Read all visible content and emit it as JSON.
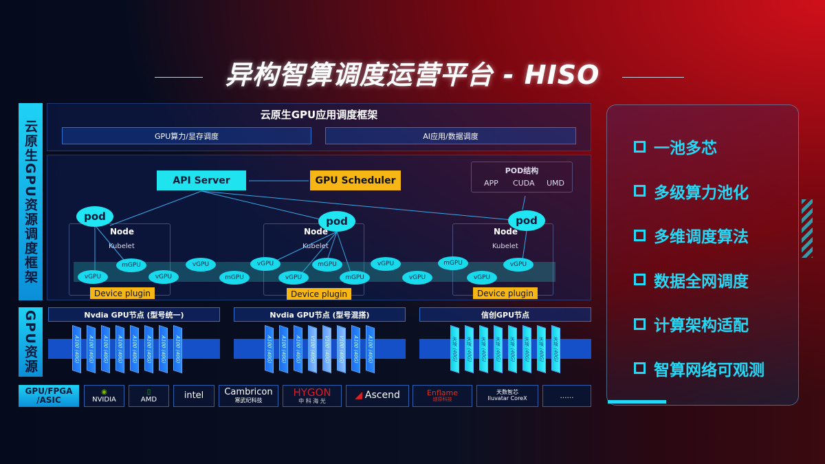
{
  "title": "异构智算调度运营平台 - HISO",
  "side_labels": {
    "framework": "云原生GPU资源调度框架",
    "resources": "GPU资源",
    "chips": "GPU/FPGA /ASIC"
  },
  "framework": {
    "title": "云原生GPU应用调度框架",
    "sub": [
      "GPU算力/显存调度",
      "AI应用/数据调度"
    ]
  },
  "control": {
    "api_server": "API Server",
    "gpu_scheduler": "GPU Scheduler"
  },
  "pod_struct": {
    "title": "POD结构",
    "parts": [
      "APP",
      "CUDA",
      "UMD"
    ]
  },
  "nodes": [
    {
      "pod": "pod",
      "node": "Node",
      "kubelet": "Kubelet",
      "plugin": "Device plugin"
    },
    {
      "pod": "pod",
      "node": "Node",
      "kubelet": "Kubelet",
      "plugin": "Device plugin"
    },
    {
      "pod": "pod",
      "node": "Node",
      "kubelet": "Kubelet",
      "plugin": "Device plugin"
    }
  ],
  "virtual_gpus": [
    "vGPU",
    "vGPU",
    "mGPU",
    "vGPU",
    "mGPU",
    "vGPU",
    "vGPU",
    "mGPU",
    "mGPU",
    "vGPU",
    "vGPU",
    "mGPU",
    "vGPU",
    "vGPU"
  ],
  "gpu_groups": [
    {
      "title": "Nvdia GPU节点 (型号统一)",
      "cards": [
        "A100 (40G)",
        "A100 (40G)",
        "A100 (40G)",
        "A100 (40G)",
        "A100 (40G)",
        "A100 (40G)",
        "A100 (40G)",
        "A100 (40G)"
      ]
    },
    {
      "title": "Nvdia GPU节点 (型号混搭)",
      "cards": [
        "A100 (40G)",
        "A100 (40G)",
        "A100 (40G)",
        "V100 (40G)",
        "V100 (40G)",
        "V100 (40G)",
        "A100 (40G)",
        "A100 (40G)"
      ]
    },
    {
      "title": "信创GPU节点",
      "cards": [
        "天垓 (40G)",
        "天垓 (40G)",
        "天垓 (40G)",
        "天垓 (40G)",
        "天垓 (40G)",
        "天垓 (40G)",
        "天垓 (40G)",
        "天垓 (40G)"
      ]
    }
  ],
  "vendors": [
    {
      "name": "NVIDIA",
      "sub": ""
    },
    {
      "name": "AMD",
      "sub": ""
    },
    {
      "name": "intel",
      "sub": ""
    },
    {
      "name": "Cambricon",
      "sub": "寒武纪科技"
    },
    {
      "name": "HYGON",
      "sub": "中 科 海 光"
    },
    {
      "name": "Ascend",
      "sub": ""
    },
    {
      "name": "Enflame",
      "sub": "燧原科技"
    },
    {
      "name": "天数智芯",
      "sub": "Iluvatar CoreX"
    },
    {
      "name": "……",
      "sub": ""
    }
  ],
  "features": [
    "一池多芯",
    "多级算力池化",
    "多维调度算法",
    "数据全网调度",
    "计算架构适配",
    "智算网络可观测"
  ],
  "colors": {
    "cyan": "#1fe3ee",
    "orange": "#f6b716",
    "blue": "#1650c8",
    "red": "#d0101a"
  }
}
